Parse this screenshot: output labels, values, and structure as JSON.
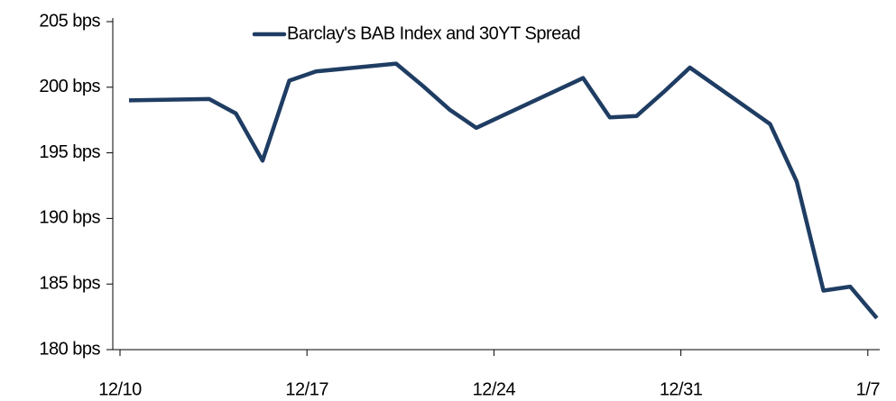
{
  "chart_data": {
    "type": "line",
    "x": [
      "12/10",
      "12/13",
      "12/14",
      "12/15",
      "12/16",
      "12/17",
      "12/20",
      "12/21",
      "12/22",
      "12/23",
      "12/27",
      "12/28",
      "12/29",
      "12/30",
      "12/31",
      "1/3",
      "1/4",
      "1/5",
      "1/6",
      "1/7"
    ],
    "series": [
      {
        "name": "Barclay's BAB Index and 30YT Spread",
        "color": "#1f3d63",
        "values": [
          199.0,
          199.1,
          198.0,
          194.4,
          200.5,
          201.2,
          201.8,
          200.1,
          198.3,
          196.9,
          200.7,
          197.7,
          197.8,
          199.6,
          201.5,
          197.2,
          192.8,
          184.5,
          184.8,
          182.4
        ]
      }
    ],
    "xticks": [
      "12/10",
      "12/17",
      "12/24",
      "12/31",
      "1/7"
    ],
    "ylim": [
      180,
      205
    ],
    "yticks": [
      {
        "value": 180,
        "label": "180 bps"
      },
      {
        "value": 185,
        "label": "185 bps"
      },
      {
        "value": 190,
        "label": "190 bps"
      },
      {
        "value": 195,
        "label": "195 bps"
      },
      {
        "value": 200,
        "label": "200 bps"
      },
      {
        "value": 205,
        "label": "205 bps"
      }
    ],
    "legend": "top",
    "grid": false
  }
}
